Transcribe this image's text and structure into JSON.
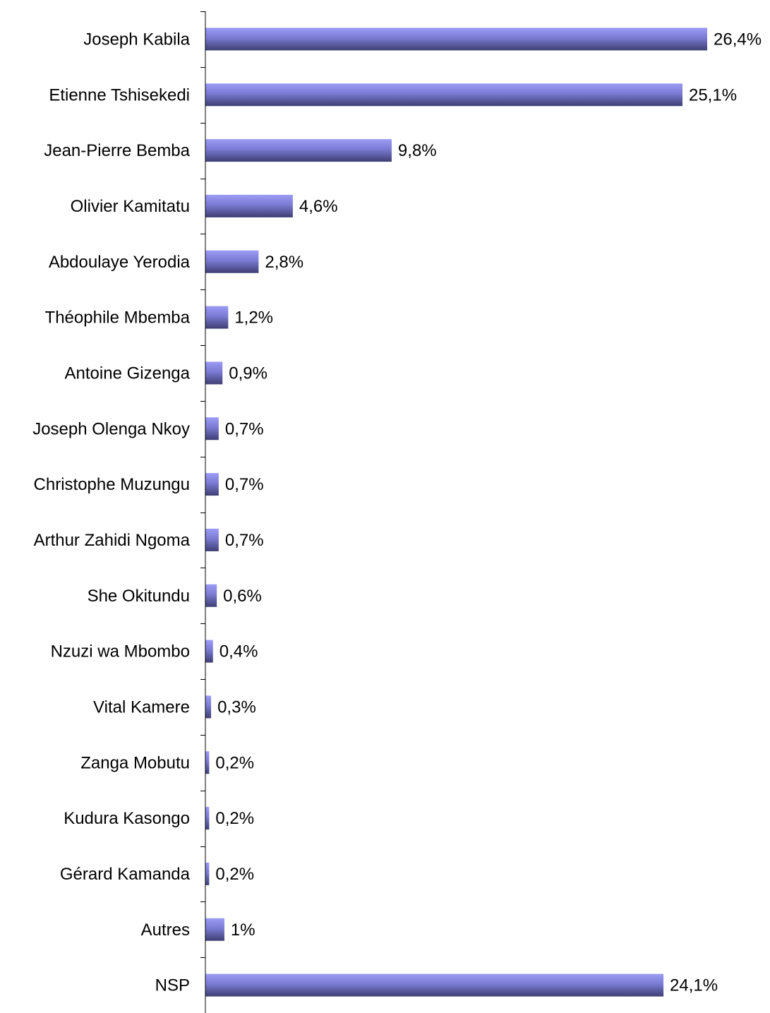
{
  "chart_data": {
    "type": "bar",
    "orientation": "horizontal",
    "categories": [
      "Joseph Kabila",
      "Etienne Tshisekedi",
      "Jean-Pierre Bemba",
      "Olivier Kamitatu",
      "Abdoulaye Yerodia",
      "Théophile Mbemba",
      "Antoine Gizenga",
      "Joseph Olenga Nkoy",
      "Christophe Muzungu",
      "Arthur Zahidi Ngoma",
      "She Okitundu",
      "Nzuzi wa Mbombo",
      "Vital Kamere",
      "Zanga Mobutu",
      "Kudura Kasongo",
      "Gérard Kamanda",
      "Autres",
      "NSP"
    ],
    "values": [
      26.4,
      25.1,
      9.8,
      4.6,
      2.8,
      1.2,
      0.9,
      0.7,
      0.7,
      0.7,
      0.6,
      0.4,
      0.3,
      0.2,
      0.2,
      0.2,
      1,
      24.1
    ],
    "value_labels": [
      "26,4%",
      "25,1%",
      "9,8%",
      "4,6%",
      "2,8%",
      "1,2%",
      "0,9%",
      "0,7%",
      "0,7%",
      "0,7%",
      "0,6%",
      "0,4%",
      "0,3%",
      "0,2%",
      "0,2%",
      "0,2%",
      "1%",
      "24,1%"
    ],
    "title": "",
    "xlabel": "",
    "ylabel": "",
    "xlim": [
      0,
      26.4
    ],
    "grid": false,
    "legend": "none",
    "colors": {
      "bar_light": "#9c9cf6",
      "bar_mid": "#7a7ad2",
      "bar_dark": "#3e3e74",
      "axis": "#000000"
    }
  }
}
